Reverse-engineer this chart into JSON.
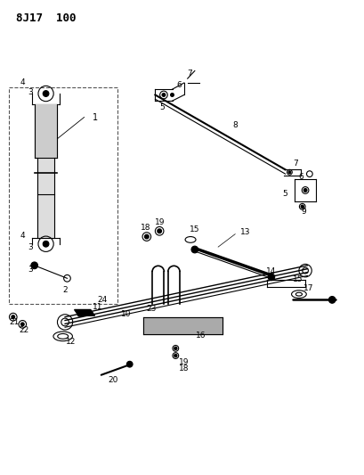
{
  "title": "8J17  100",
  "bg_color": "#ffffff",
  "fg_color": "#000000",
  "fig_width": 4.09,
  "fig_height": 5.33,
  "dpi": 100
}
